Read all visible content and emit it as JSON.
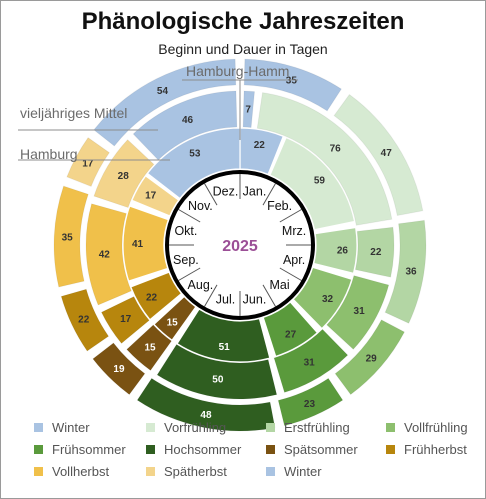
{
  "chart_data": {
    "type": "pie",
    "title": "Phänologische Jahreszeiten",
    "subtitle": "Beginn und Dauer in Tagen",
    "center_label": "2025",
    "months": [
      "Jan.",
      "Feb.",
      "Mrz.",
      "Apr.",
      "Mai",
      "Jun.",
      "Jul.",
      "Aug.",
      "Sep.",
      "Okt.",
      "Nov.",
      "Dez."
    ],
    "categories": [
      "Winter",
      "Vorfrühling",
      "Erstfrühling",
      "Vollfrühling",
      "Frühsommer",
      "Hochsommer",
      "Spätsommer",
      "Frühherbst",
      "Vollherbst",
      "Spätherbst",
      "Winter"
    ],
    "colors": [
      "#a9c3e2",
      "#d6ead2",
      "#b3d6a4",
      "#8dbf6e",
      "#5a9a3c",
      "#2f5e20",
      "#7a5212",
      "#b7860d",
      "#f0c04a",
      "#f3d48b",
      "#a9c3e2"
    ],
    "series": [
      {
        "name": "Hamburg-Hamm",
        "values": [
          22,
          59,
          26,
          32,
          27,
          51,
          15,
          22,
          41,
          17,
          53
        ]
      },
      {
        "name": "Hamburg",
        "values": [
          7,
          76,
          22,
          31,
          31,
          50,
          15,
          17,
          42,
          28,
          46
        ]
      },
      {
        "name": "vieljähriges Mittel",
        "values": [
          35,
          47,
          36,
          29,
          23,
          48,
          19,
          22,
          35,
          17,
          54
        ]
      }
    ]
  }
}
